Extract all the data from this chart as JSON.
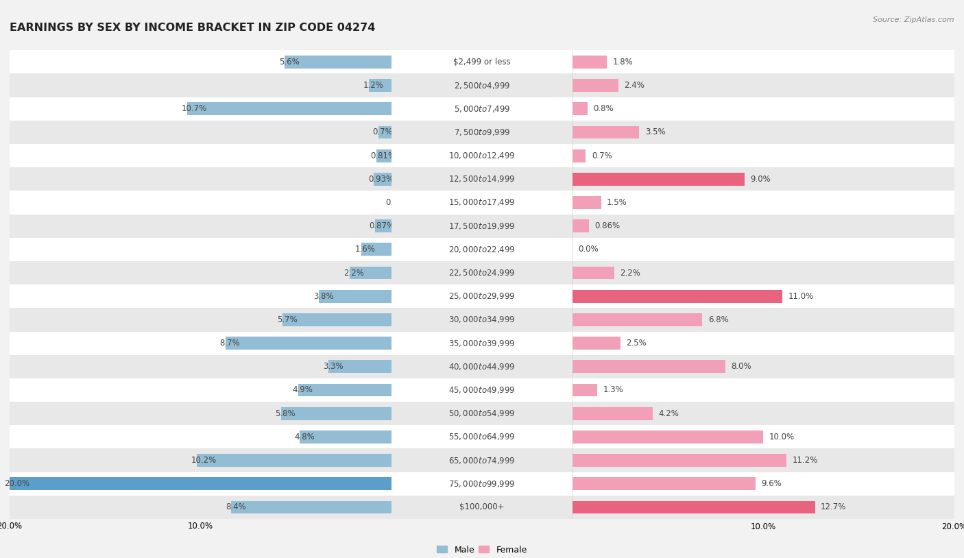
{
  "title": "EARNINGS BY SEX BY INCOME BRACKET IN ZIP CODE 04274",
  "source": "Source: ZipAtlas.com",
  "categories": [
    "$2,499 or less",
    "$2,500 to $4,999",
    "$5,000 to $7,499",
    "$7,500 to $9,999",
    "$10,000 to $12,499",
    "$12,500 to $14,999",
    "$15,000 to $17,499",
    "$17,500 to $19,999",
    "$20,000 to $22,499",
    "$22,500 to $24,999",
    "$25,000 to $29,999",
    "$30,000 to $34,999",
    "$35,000 to $39,999",
    "$40,000 to $44,999",
    "$45,000 to $49,999",
    "$50,000 to $54,999",
    "$55,000 to $64,999",
    "$65,000 to $74,999",
    "$75,000 to $99,999",
    "$100,000+"
  ],
  "male_values": [
    5.6,
    1.2,
    10.7,
    0.7,
    0.81,
    0.93,
    0.0,
    0.87,
    1.6,
    2.2,
    3.8,
    5.7,
    8.7,
    3.3,
    4.9,
    5.8,
    4.8,
    10.2,
    20.0,
    8.4
  ],
  "female_values": [
    1.8,
    2.4,
    0.8,
    3.5,
    0.7,
    9.0,
    1.5,
    0.86,
    0.0,
    2.2,
    11.0,
    6.8,
    2.5,
    8.0,
    1.3,
    4.2,
    10.0,
    11.2,
    9.6,
    12.7
  ],
  "male_color": "#92bdd4",
  "female_color": "#f2a0b8",
  "male_highlight_color": "#5b9ec9",
  "female_highlight_color": "#e8637e",
  "bg_color": "#f2f2f2",
  "row_light": "#ffffff",
  "row_dark": "#e8e8e8",
  "xlim": 20.0,
  "bar_height": 0.55,
  "title_fontsize": 11.5,
  "label_fontsize": 8.5,
  "cat_fontsize": 8.5,
  "source_fontsize": 8
}
